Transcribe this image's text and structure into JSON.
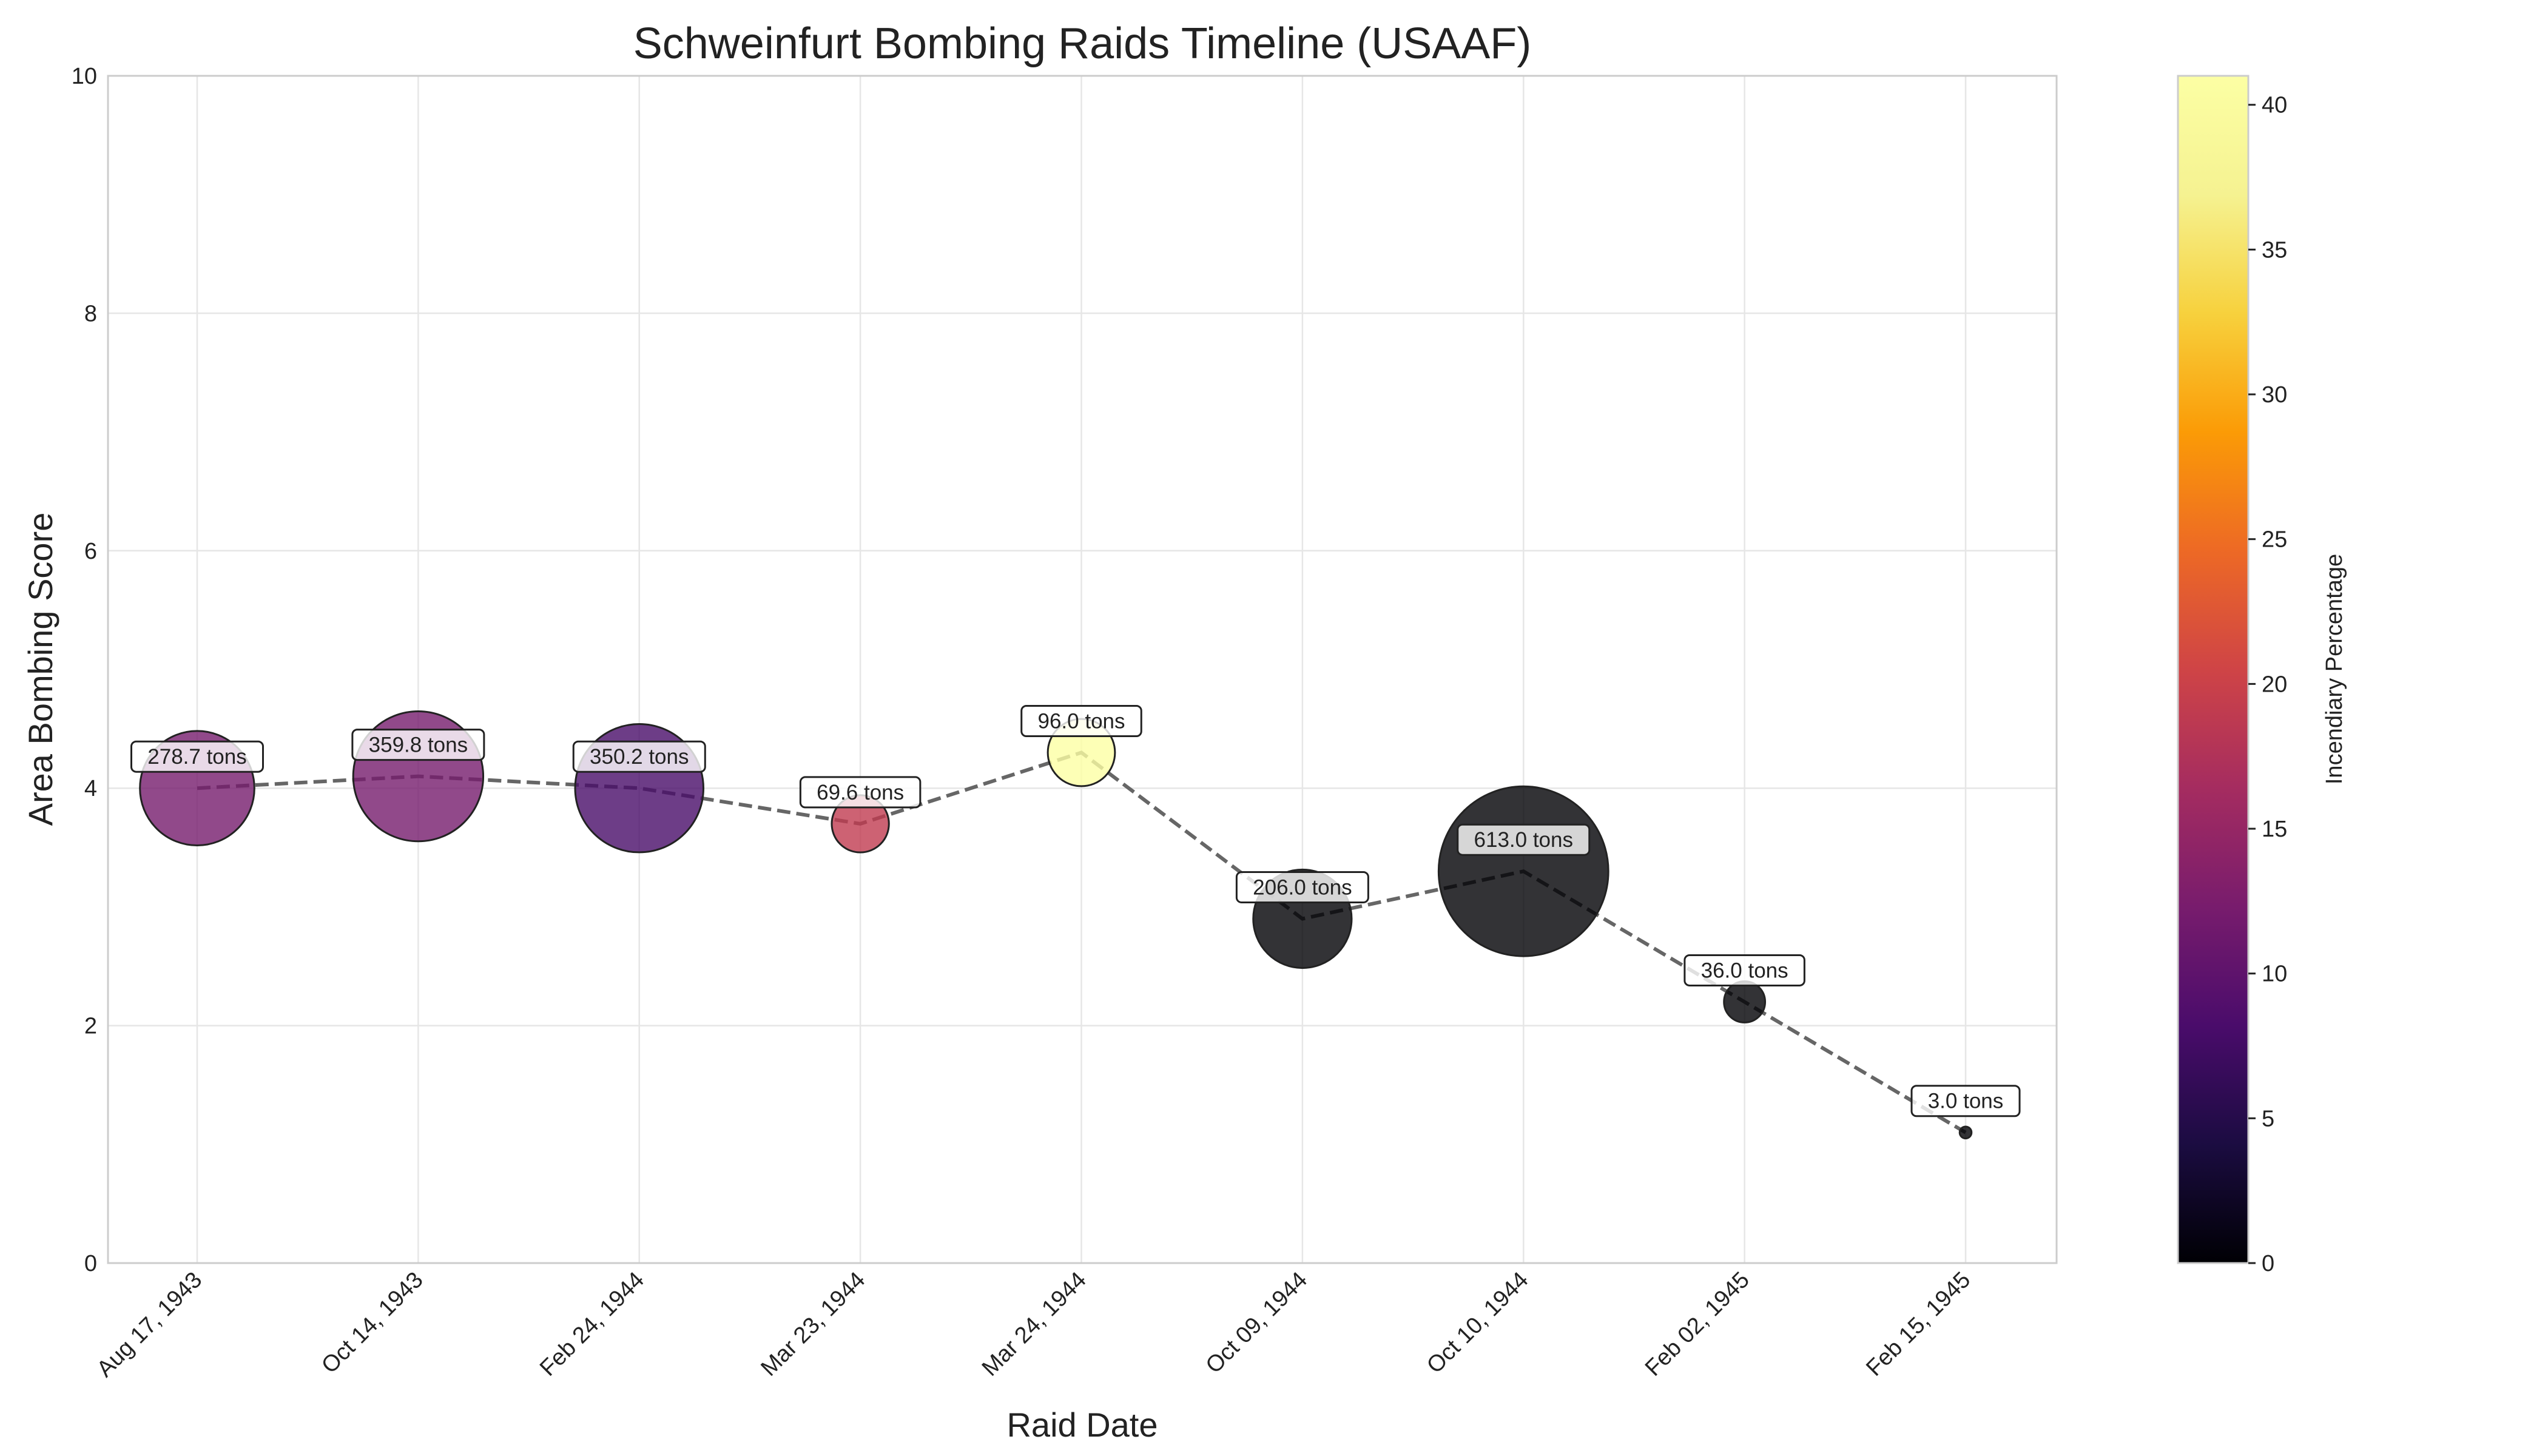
{
  "chart_data": {
    "type": "scatter",
    "title": "Schweinfurt Bombing Raids Timeline (USAAF)",
    "xlabel": "Raid Date",
    "ylabel": "Area Bombing Score",
    "ylim": [
      0,
      10
    ],
    "yticks": [
      0,
      2,
      4,
      6,
      8,
      10
    ],
    "grid": true,
    "connecting_line": "dashed",
    "categories": [
      "Aug 17, 1943",
      "Oct 14, 1943",
      "Feb 24, 1944",
      "Mar 23, 1944",
      "Mar 24, 1944",
      "Oct 09, 1944",
      "Oct 10, 1944",
      "Feb 02, 1945",
      "Feb 15, 1945"
    ],
    "values": [
      4.0,
      4.1,
      4.0,
      3.7,
      4.3,
      2.9,
      3.3,
      2.2,
      1.1
    ],
    "tonnage": [
      278.7,
      359.8,
      350.2,
      69.6,
      96.0,
      206.0,
      613.0,
      36.0,
      3.0
    ],
    "incendiary_pct": [
      12,
      12,
      8,
      19,
      41,
      0,
      0,
      0,
      0
    ],
    "annotations": [
      "278.7 tons",
      "359.8 tons",
      "350.2 tons",
      "69.6 tons",
      "96.0 tons",
      "206.0 tons",
      "613.0 tons",
      "36.0 tons",
      "3.0 tons"
    ],
    "colorbar": {
      "label": "Incendiary Percentage",
      "colormap": "inferno",
      "range": [
        0,
        41
      ],
      "ticks": [
        0,
        5,
        10,
        15,
        20,
        25,
        30,
        35,
        40
      ]
    }
  }
}
